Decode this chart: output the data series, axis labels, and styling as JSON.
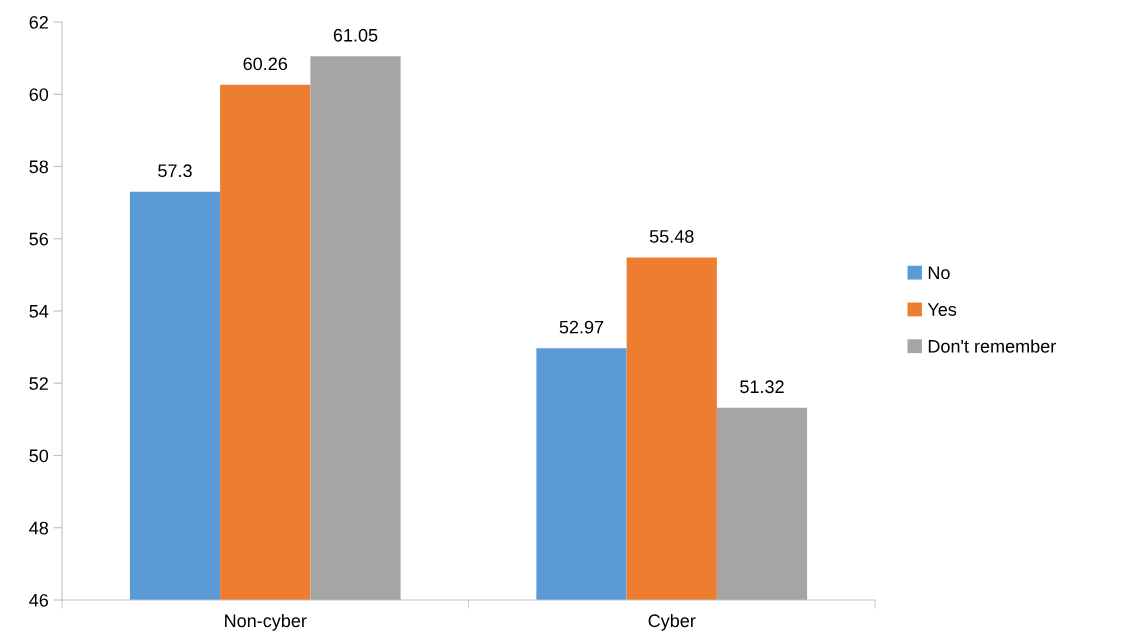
{
  "chart_data": {
    "type": "bar",
    "categories": [
      "Non-cyber",
      "Cyber"
    ],
    "series": [
      {
        "name": "No",
        "color": "#5b9bd5",
        "values": [
          57.3,
          52.97
        ]
      },
      {
        "name": "Yes",
        "color": "#ed7d31",
        "values": [
          60.26,
          55.48
        ]
      },
      {
        "name": "Don't remember",
        "color": "#a5a5a5",
        "values": [
          61.05,
          51.32
        ]
      }
    ],
    "ylim": [
      46,
      62
    ],
    "yticks": [
      46,
      48,
      50,
      52,
      54,
      56,
      58,
      60,
      62
    ],
    "data_labels": true,
    "grid": false,
    "legend": "right"
  }
}
